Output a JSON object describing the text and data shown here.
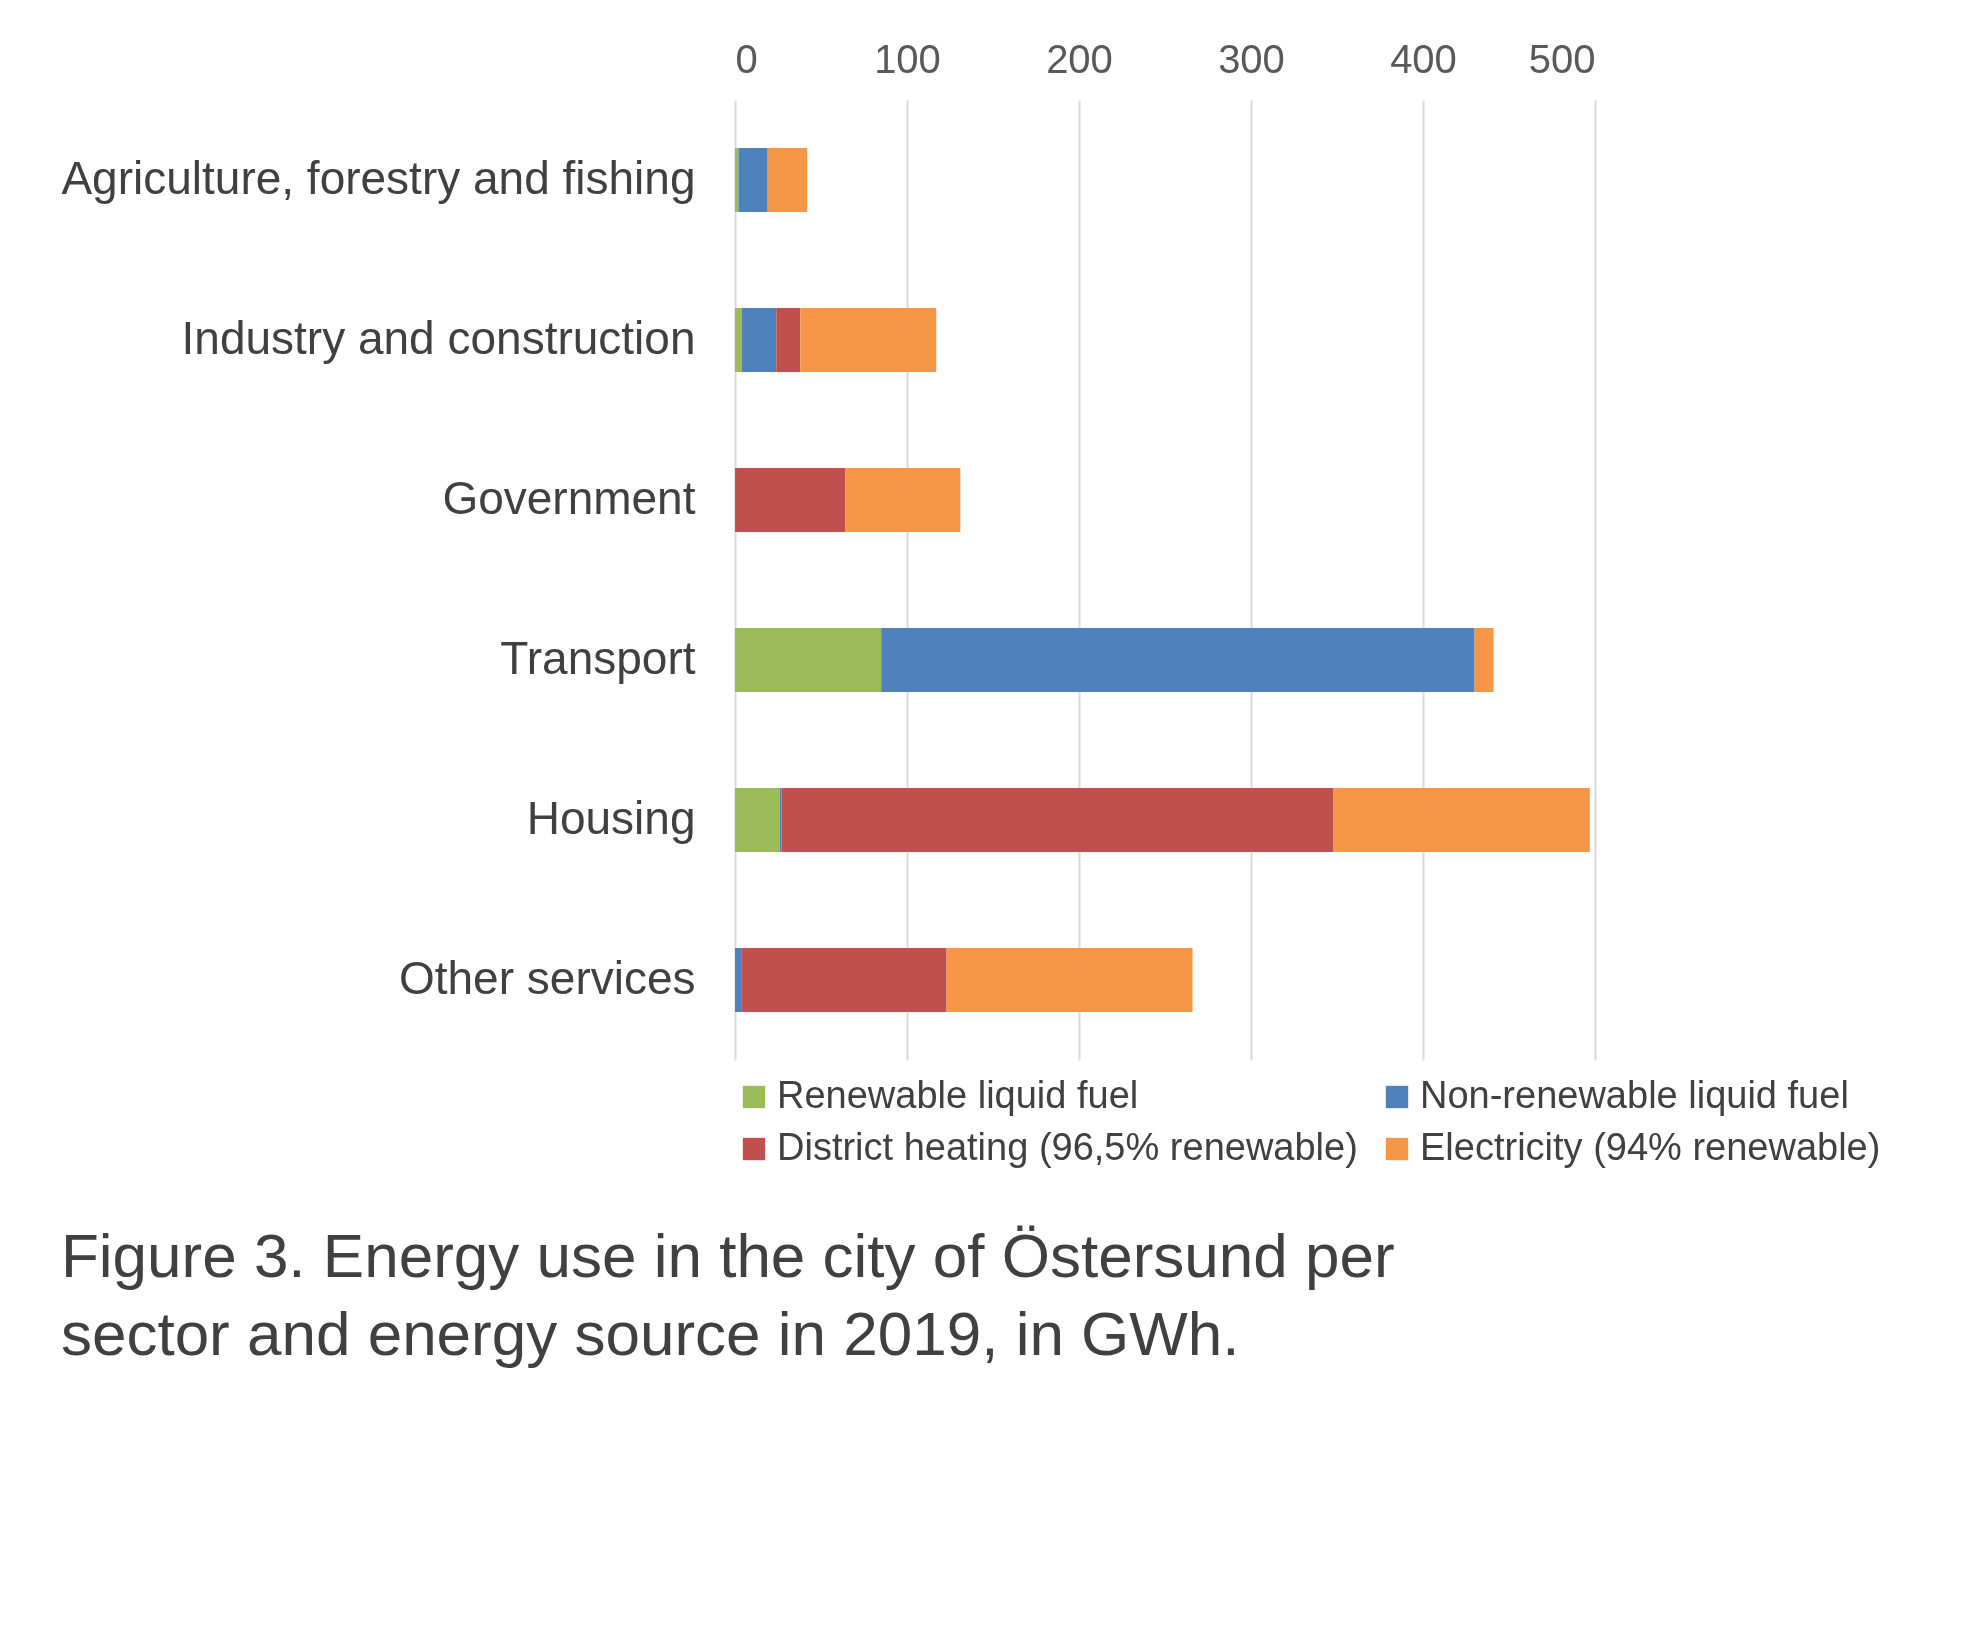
{
  "chart_data": {
    "type": "bar",
    "orientation": "horizontal",
    "stacked": true,
    "title": "Figure 3. Energy use in the city of Östersund per sector and energy source in 2019, in GWh.",
    "categories": [
      "Agriculture, forestry and fishing",
      "Industry and construction",
      "Government",
      "Transport",
      "Housing",
      "Other services"
    ],
    "series": [
      {
        "name": "Renewable liquid fuel",
        "color": "#9bbb59",
        "values": [
          2,
          4,
          0,
          85,
          26,
          0
        ]
      },
      {
        "name": "Non-renewable liquid fuel",
        "color": "#4f81bd",
        "values": [
          17,
          20,
          0,
          345,
          1,
          4
        ]
      },
      {
        "name": "District heating (96,5% renewable)",
        "color": "#c0504d",
        "values": [
          0,
          14,
          64,
          0,
          321,
          119
        ]
      },
      {
        "name": "Electricity (94% renewable)",
        "color": "#f79646",
        "values": [
          23,
          79,
          67,
          11,
          149,
          143
        ]
      }
    ],
    "xlim": [
      0,
      500
    ],
    "xticks": [
      0,
      100,
      200,
      300,
      400,
      500
    ],
    "grid": "x",
    "legend": "bottom"
  }
}
